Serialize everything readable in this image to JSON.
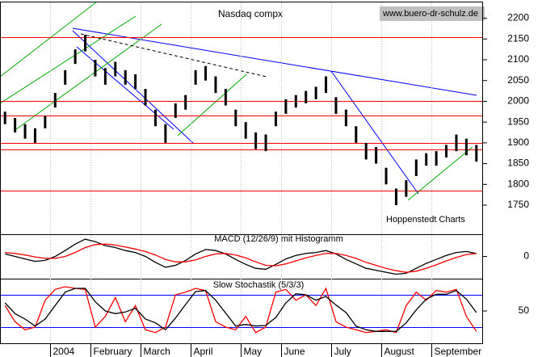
{
  "chart_data": [
    {
      "type": "range-bar",
      "title": "Nasdaq compx",
      "source": "www.buero-dr-schulz.de",
      "credit": "Hoppenstedt Charts",
      "categories": [
        null,
        null,
        null,
        null,
        null,
        "2004",
        null,
        null,
        null,
        "February",
        null,
        null,
        null,
        null,
        "March",
        null,
        null,
        null,
        null,
        "April",
        null,
        null,
        null,
        null,
        "May",
        null,
        null,
        null,
        "June",
        null,
        null,
        null,
        null,
        "July",
        null,
        null,
        null,
        null,
        "August",
        null,
        null,
        null,
        null,
        "September",
        null,
        null,
        null,
        null
      ],
      "high": [
        1975,
        1960,
        1945,
        1935,
        1965,
        2020,
        2075,
        2125,
        2160,
        2100,
        2080,
        2095,
        2075,
        2065,
        2030,
        1980,
        1945,
        1995,
        2015,
        2075,
        2085,
        2060,
        2030,
        1980,
        1950,
        1925,
        1920,
        1975,
        2005,
        2015,
        2025,
        2035,
        2060,
        2010,
        1980,
        1940,
        1900,
        1890,
        1840,
        1790,
        1810,
        1860,
        1875,
        1880,
        1895,
        1920,
        1910,
        1895
      ],
      "low": [
        1945,
        1925,
        1910,
        1900,
        1935,
        1985,
        2040,
        2090,
        2120,
        2060,
        2040,
        2060,
        2040,
        2030,
        1990,
        1940,
        1900,
        1960,
        1980,
        2040,
        2050,
        2020,
        1990,
        1940,
        1910,
        1885,
        1880,
        1940,
        1970,
        1985,
        1995,
        2005,
        2020,
        1970,
        1940,
        1900,
        1860,
        1850,
        1800,
        1750,
        1770,
        1820,
        1845,
        1845,
        1865,
        1880,
        1870,
        1855
      ],
      "color": "#000000",
      "ylim": [
        1680,
        2240
      ],
      "yticks": [
        1750,
        1800,
        1850,
        1900,
        1950,
        2000,
        2050,
        2100,
        2150,
        2200
      ],
      "hlines": [
        2155,
        2000,
        1965,
        1900,
        1885,
        1785
      ],
      "hline_color": "#ff0000"
    },
    {
      "type": "line",
      "title": "MACD (12/26/9) mit Histogramm",
      "series": [
        {
          "color": "#000000",
          "values": [
            5,
            0,
            -5,
            -10,
            -8,
            0,
            12,
            25,
            35,
            30,
            22,
            18,
            12,
            8,
            0,
            -12,
            -22,
            -18,
            -8,
            5,
            14,
            12,
            5,
            -6,
            -16,
            -24,
            -26,
            -16,
            -5,
            2,
            6,
            8,
            12,
            5,
            -6,
            -15,
            -24,
            -28,
            -32,
            -36,
            -34,
            -24,
            -14,
            -6,
            2,
            8,
            10,
            6
          ]
        },
        {
          "color": "#ff0000",
          "values": [
            8,
            6,
            3,
            -1,
            -4,
            -4,
            0,
            8,
            18,
            24,
            25,
            23,
            19,
            15,
            10,
            3,
            -6,
            -11,
            -11,
            -7,
            0,
            5,
            6,
            3,
            -3,
            -11,
            -18,
            -19,
            -15,
            -9,
            -3,
            2,
            6,
            6,
            2,
            -4,
            -12,
            -18,
            -24,
            -29,
            -32,
            -30,
            -24,
            -17,
            -9,
            -2,
            4,
            6
          ]
        }
      ],
      "ylim": [
        -45,
        45
      ],
      "yticks": [
        0
      ]
    },
    {
      "type": "line",
      "title": "Slow Stochastik (5/3/3)",
      "series": [
        {
          "color": "#ff0000",
          "values": [
            60,
            30,
            15,
            20,
            70,
            90,
            95,
            92,
            90,
            20,
            40,
            75,
            30,
            60,
            15,
            10,
            20,
            80,
            85,
            92,
            88,
            30,
            20,
            15,
            40,
            10,
            20,
            85,
            90,
            70,
            80,
            60,
            92,
            30,
            20,
            15,
            10,
            12,
            15,
            10,
            60,
            85,
            70,
            88,
            85,
            90,
            40,
            12
          ]
        },
        {
          "color": "#000000",
          "values": [
            65,
            45,
            35,
            22,
            35,
            60,
            85,
            92,
            92,
            67,
            50,
            45,
            48,
            55,
            35,
            28,
            15,
            37,
            62,
            86,
            88,
            70,
            46,
            22,
            25,
            22,
            23,
            38,
            65,
            82,
            80,
            70,
            77,
            61,
            47,
            22,
            15,
            12,
            12,
            12,
            28,
            52,
            72,
            81,
            81,
            88,
            72,
            47
          ]
        }
      ],
      "ylim": [
        -10,
        110
      ],
      "yticks": [
        50
      ],
      "hlines": [
        20,
        80
      ],
      "hline_color": "#0000ff"
    }
  ]
}
